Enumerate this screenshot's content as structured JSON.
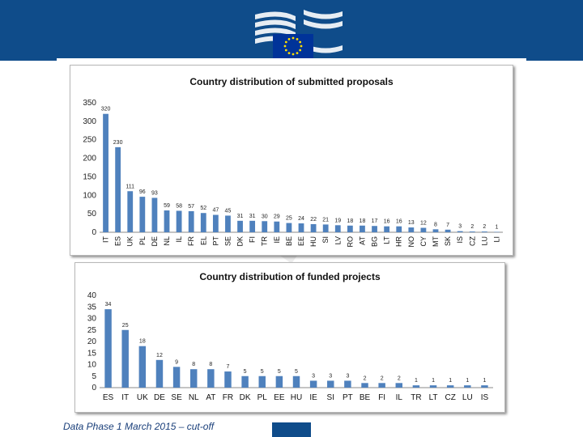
{
  "colors": {
    "header": "#0f4c8a",
    "bar": "#4f81bd",
    "footer_text": "#1a3f7a"
  },
  "footer": {
    "text": "Data Phase 1 March 2015 – cut-off"
  },
  "chart_data": [
    {
      "type": "bar",
      "title": "Country distribution of submitted proposals",
      "categories": [
        "IT",
        "ES",
        "UK",
        "PL",
        "DE",
        "NL",
        "IL",
        "FR",
        "EL",
        "PT",
        "SE",
        "DK",
        "FI",
        "TR",
        "IE",
        "BE",
        "EE",
        "HU",
        "SI",
        "LV",
        "RO",
        "AT",
        "BG",
        "LT",
        "HR",
        "NO",
        "CY",
        "MT",
        "SK",
        "IS",
        "CZ",
        "LU",
        "LI"
      ],
      "values": [
        320,
        230,
        111,
        96,
        93,
        59,
        58,
        57,
        52,
        47,
        45,
        31,
        31,
        30,
        29,
        25,
        24,
        22,
        21,
        19,
        18,
        18,
        17,
        16,
        16,
        13,
        12,
        8,
        7,
        3,
        2,
        2,
        1
      ],
      "ylim": [
        0,
        350
      ],
      "yticks": [
        0,
        50,
        100,
        150,
        200,
        250,
        300,
        350
      ],
      "grid": false,
      "legend": "none"
    },
    {
      "type": "bar",
      "title": "Country distribution of funded projects",
      "categories": [
        "ES",
        "IT",
        "UK",
        "DE",
        "SE",
        "NL",
        "AT",
        "FR",
        "DK",
        "PL",
        "EE",
        "HU",
        "IE",
        "SI",
        "PT",
        "BE",
        "FI",
        "IL",
        "TR",
        "LT",
        "CZ",
        "LU",
        "IS"
      ],
      "values": [
        34,
        25,
        18,
        12,
        9,
        8,
        8,
        7,
        5,
        5,
        5,
        5,
        3,
        3,
        3,
        2,
        2,
        2,
        1,
        1,
        1,
        1,
        1
      ],
      "ylim": [
        0,
        40
      ],
      "yticks": [
        0,
        5,
        10,
        15,
        20,
        25,
        30,
        35,
        40
      ],
      "grid": false,
      "legend": "none"
    }
  ]
}
